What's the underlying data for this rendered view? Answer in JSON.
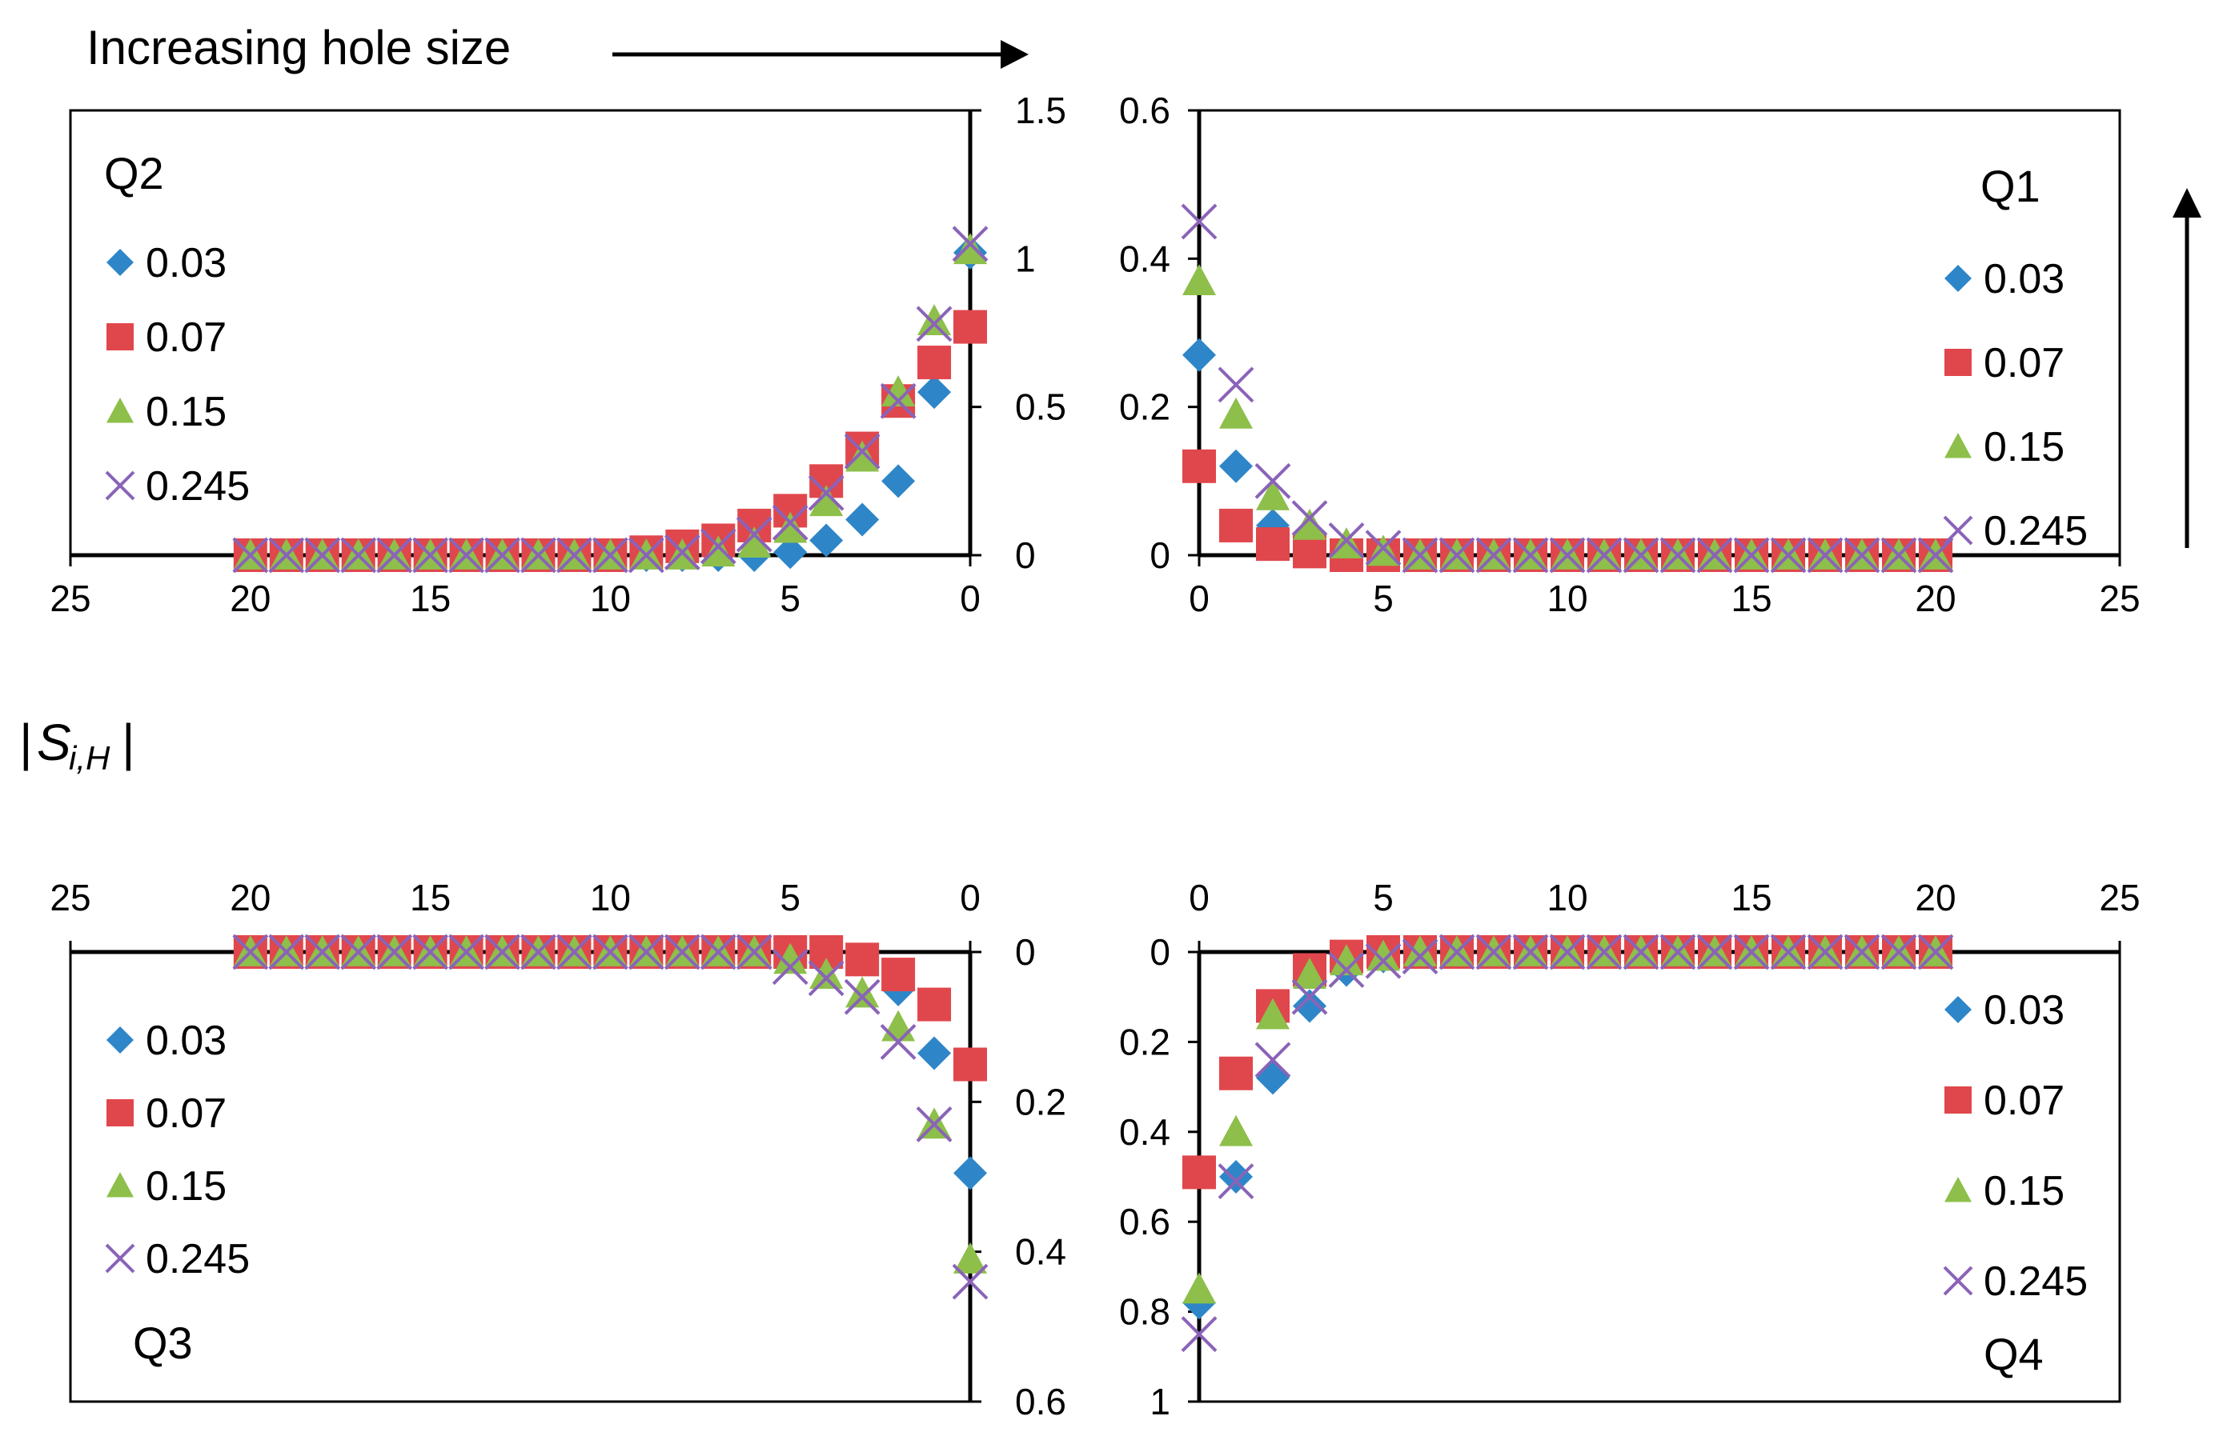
{
  "annotation": {
    "text": "Increasing hole size"
  },
  "ylabel": {
    "bar": "|",
    "main": "S",
    "sub": "i,H"
  },
  "marker_styles": [
    {
      "marker": "diamond",
      "color": "#2e86c8"
    },
    {
      "marker": "square",
      "color": "#e0474c"
    },
    {
      "marker": "triangle",
      "color": "#8dbf4a"
    },
    {
      "marker": "x",
      "color": "#8a63b8"
    }
  ],
  "chart_data": [
    {
      "type": "scatter",
      "quadrant": "Q2",
      "title": "Q2",
      "x_reversed": true,
      "xlim": [
        0,
        25
      ],
      "ylim": [
        0,
        1.5
      ],
      "xticks": [
        "25",
        "20",
        "15",
        "10",
        "5",
        "0"
      ],
      "yticks": [
        "0",
        "0.5",
        "1",
        "1.5"
      ],
      "legend": [
        "0.03",
        "0.07",
        "0.15",
        "0.245"
      ],
      "x": [
        0,
        1,
        2,
        3,
        4,
        5,
        6,
        7,
        8,
        9,
        10,
        11,
        12,
        13,
        14,
        15,
        16,
        17,
        18,
        19,
        20
      ],
      "series": [
        {
          "name": "0.03",
          "values": [
            1.02,
            0.55,
            0.25,
            0.12,
            0.05,
            0.01,
            0,
            0,
            0,
            0,
            0,
            0,
            0,
            0,
            0,
            0,
            0,
            0,
            0,
            0,
            0
          ]
        },
        {
          "name": "0.07",
          "values": [
            0.77,
            0.65,
            0.52,
            0.36,
            0.25,
            0.15,
            0.1,
            0.05,
            0.03,
            0.01,
            0,
            0,
            0,
            0,
            0,
            0,
            0,
            0,
            0,
            0,
            0
          ]
        },
        {
          "name": "0.15",
          "values": [
            1.03,
            0.79,
            0.55,
            0.33,
            0.18,
            0.09,
            0.04,
            0.01,
            0,
            0,
            0,
            0,
            0,
            0,
            0,
            0,
            0,
            0,
            0,
            0,
            0
          ]
        },
        {
          "name": "0.245",
          "values": [
            1.05,
            0.78,
            0.52,
            0.35,
            0.21,
            0.11,
            0.07,
            0.03,
            0.01,
            0,
            0,
            0,
            0,
            0,
            0,
            0,
            0,
            0,
            0,
            0,
            0
          ]
        }
      ]
    },
    {
      "type": "scatter",
      "quadrant": "Q1",
      "title": "Q1",
      "x_reversed": false,
      "xlim": [
        0,
        25
      ],
      "ylim": [
        0,
        0.6
      ],
      "xticks": [
        "0",
        "5",
        "10",
        "15",
        "20",
        "25"
      ],
      "yticks": [
        "0",
        "0.2",
        "0.4",
        "0.6"
      ],
      "legend": [
        "0.03",
        "0.07",
        "0.15",
        "0.245"
      ],
      "x": [
        0,
        1,
        2,
        3,
        4,
        5,
        6,
        7,
        8,
        9,
        10,
        11,
        12,
        13,
        14,
        15,
        16,
        17,
        18,
        19,
        20
      ],
      "series": [
        {
          "name": "0.03",
          "values": [
            0.27,
            0.12,
            0.04,
            0.01,
            0,
            0,
            0,
            0,
            0,
            0,
            0,
            0,
            0,
            0,
            0,
            0,
            0,
            0,
            0,
            0,
            0
          ]
        },
        {
          "name": "0.07",
          "values": [
            0.12,
            0.04,
            0.015,
            0.005,
            0,
            0,
            0,
            0,
            0,
            0,
            0,
            0,
            0,
            0,
            0,
            0,
            0,
            0,
            0,
            0,
            0
          ]
        },
        {
          "name": "0.15",
          "values": [
            0.37,
            0.19,
            0.08,
            0.04,
            0.015,
            0.005,
            0,
            0,
            0,
            0,
            0,
            0,
            0,
            0,
            0,
            0,
            0,
            0,
            0,
            0,
            0
          ]
        },
        {
          "name": "0.245",
          "values": [
            0.45,
            0.23,
            0.1,
            0.05,
            0.02,
            0.01,
            0,
            0,
            0,
            0,
            0,
            0,
            0,
            0,
            0,
            0,
            0,
            0,
            0,
            0,
            0
          ]
        }
      ]
    },
    {
      "type": "scatter",
      "quadrant": "Q3",
      "title": "Q3",
      "x_reversed": true,
      "y_reversed": true,
      "xlim": [
        0,
        25
      ],
      "ylim": [
        0,
        0.6
      ],
      "xticks": [
        "25",
        "20",
        "15",
        "10",
        "5",
        "0"
      ],
      "yticks": [
        "0",
        "0.2",
        "0.4",
        "0.6"
      ],
      "legend": [
        "0.03",
        "0.07",
        "0.15",
        "0.245"
      ],
      "x": [
        0,
        1,
        2,
        3,
        4,
        5,
        6,
        7,
        8,
        9,
        10,
        11,
        12,
        13,
        14,
        15,
        16,
        17,
        18,
        19,
        20
      ],
      "series": [
        {
          "name": "0.03",
          "values": [
            0.295,
            0.135,
            0.05,
            0.01,
            0,
            0,
            0,
            0,
            0,
            0,
            0,
            0,
            0,
            0,
            0,
            0,
            0,
            0,
            0,
            0,
            0
          ]
        },
        {
          "name": "0.07",
          "values": [
            0.15,
            0.07,
            0.03,
            0.01,
            0,
            0,
            0,
            0,
            0,
            0,
            0,
            0,
            0,
            0,
            0,
            0,
            0,
            0,
            0,
            0,
            0
          ]
        },
        {
          "name": "0.15",
          "values": [
            0.41,
            0.23,
            0.1,
            0.055,
            0.03,
            0.01,
            0,
            0,
            0,
            0,
            0,
            0,
            0,
            0,
            0,
            0,
            0,
            0,
            0,
            0,
            0
          ]
        },
        {
          "name": "0.245",
          "values": [
            0.44,
            0.23,
            0.12,
            0.06,
            0.035,
            0.02,
            0,
            0,
            0,
            0,
            0,
            0,
            0,
            0,
            0,
            0,
            0,
            0,
            0,
            0,
            0
          ]
        }
      ]
    },
    {
      "type": "scatter",
      "quadrant": "Q4",
      "title": "Q4",
      "x_reversed": false,
      "y_reversed": true,
      "xlim": [
        0,
        25
      ],
      "ylim": [
        0,
        1
      ],
      "xticks": [
        "0",
        "5",
        "10",
        "15",
        "20",
        "25"
      ],
      "yticks": [
        "0",
        "0.2",
        "0.4",
        "0.6",
        "0.8",
        "1"
      ],
      "legend": [
        "0.03",
        "0.07",
        "0.15",
        "0.245"
      ],
      "x": [
        0,
        1,
        2,
        3,
        4,
        5,
        6,
        7,
        8,
        9,
        10,
        11,
        12,
        13,
        14,
        15,
        16,
        17,
        18,
        19,
        20
      ],
      "series": [
        {
          "name": "0.03",
          "values": [
            0.78,
            0.5,
            0.28,
            0.12,
            0.04,
            0.01,
            0,
            0,
            0,
            0,
            0,
            0,
            0,
            0,
            0,
            0,
            0,
            0,
            0,
            0,
            0
          ]
        },
        {
          "name": "0.07",
          "values": [
            0.49,
            0.27,
            0.12,
            0.04,
            0.01,
            0,
            0,
            0,
            0,
            0,
            0,
            0,
            0,
            0,
            0,
            0,
            0,
            0,
            0,
            0,
            0
          ]
        },
        {
          "name": "0.15",
          "values": [
            0.75,
            0.4,
            0.14,
            0.05,
            0.02,
            0.01,
            0,
            0,
            0,
            0,
            0,
            0,
            0,
            0,
            0,
            0,
            0,
            0,
            0,
            0,
            0
          ]
        },
        {
          "name": "0.245",
          "values": [
            0.85,
            0.51,
            0.24,
            0.1,
            0.04,
            0.02,
            0.01,
            0,
            0,
            0,
            0,
            0,
            0,
            0,
            0,
            0,
            0,
            0,
            0,
            0,
            0
          ]
        }
      ]
    }
  ]
}
